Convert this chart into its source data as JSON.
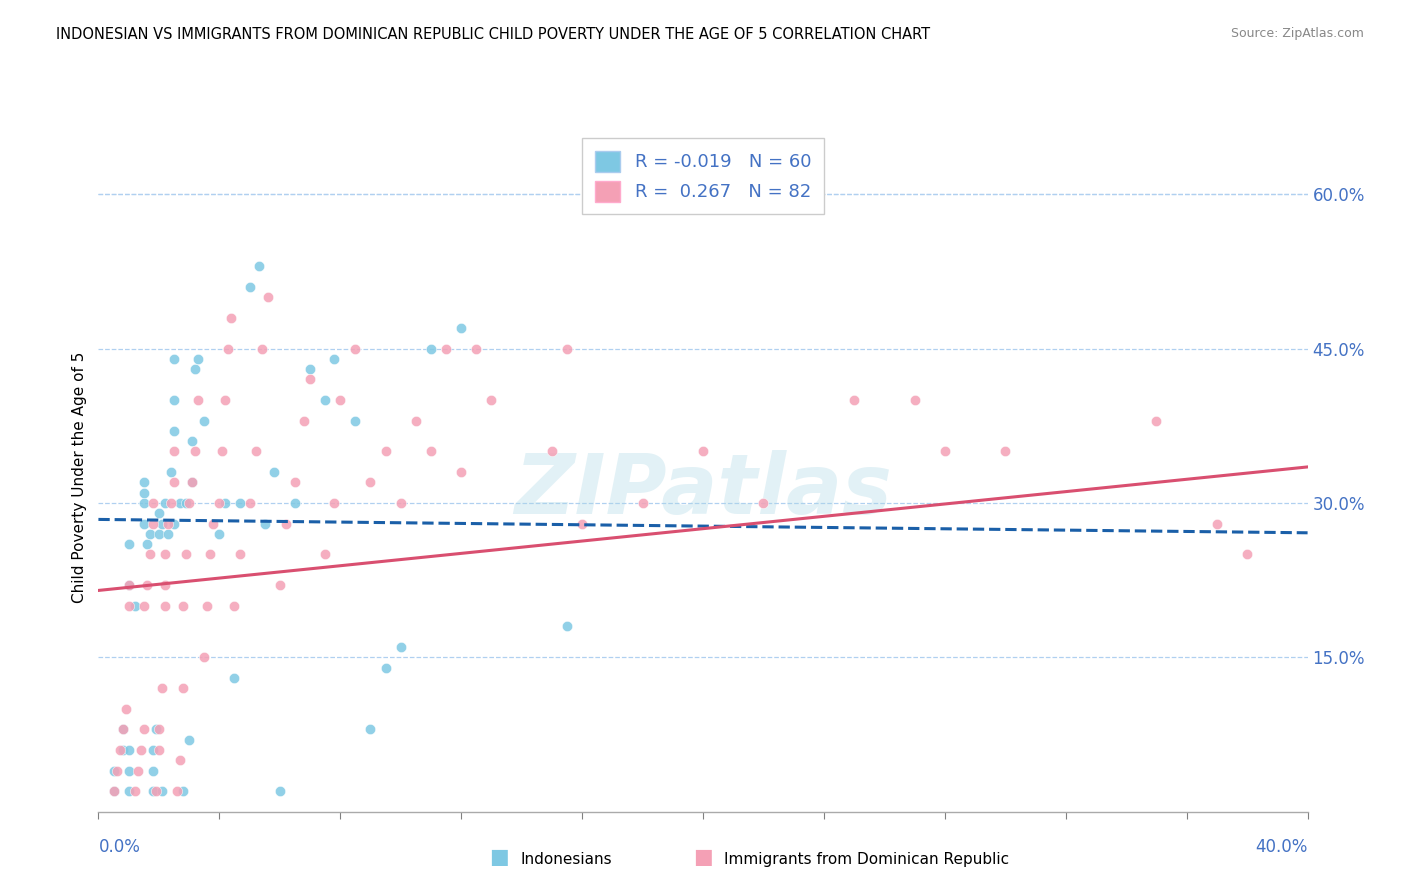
{
  "title": "INDONESIAN VS IMMIGRANTS FROM DOMINICAN REPUBLIC CHILD POVERTY UNDER THE AGE OF 5 CORRELATION CHART",
  "source": "Source: ZipAtlas.com",
  "ylabel": "Child Poverty Under the Age of 5",
  "xlim": [
    0.0,
    0.4
  ],
  "ylim": [
    0.0,
    0.65
  ],
  "ytick_vals": [
    0.15,
    0.3,
    0.45,
    0.6
  ],
  "ytick_labels": [
    "15.0%",
    "30.0%",
    "45.0%",
    "60.0%"
  ],
  "watermark": "ZIPatlas",
  "blue_scatter": "#7ec8e3",
  "pink_scatter": "#f4a0b5",
  "blue_line_color": "#1a5fa8",
  "pink_line_color": "#d94f70",
  "r_blue": "-0.019",
  "n_blue": "60",
  "r_pink": "0.267",
  "n_pink": "82",
  "indonesian_points": [
    [
      0.005,
      0.02
    ],
    [
      0.005,
      0.04
    ],
    [
      0.008,
      0.06
    ],
    [
      0.008,
      0.08
    ],
    [
      0.01,
      0.02
    ],
    [
      0.01,
      0.04
    ],
    [
      0.01,
      0.06
    ],
    [
      0.01,
      0.22
    ],
    [
      0.01,
      0.26
    ],
    [
      0.012,
      0.2
    ],
    [
      0.015,
      0.28
    ],
    [
      0.015,
      0.3
    ],
    [
      0.015,
      0.31
    ],
    [
      0.015,
      0.32
    ],
    [
      0.016,
      0.26
    ],
    [
      0.017,
      0.27
    ],
    [
      0.018,
      0.02
    ],
    [
      0.018,
      0.04
    ],
    [
      0.018,
      0.06
    ],
    [
      0.019,
      0.08
    ],
    [
      0.02,
      0.27
    ],
    [
      0.02,
      0.29
    ],
    [
      0.021,
      0.02
    ],
    [
      0.021,
      0.28
    ],
    [
      0.022,
      0.3
    ],
    [
      0.023,
      0.27
    ],
    [
      0.024,
      0.33
    ],
    [
      0.025,
      0.28
    ],
    [
      0.025,
      0.37
    ],
    [
      0.025,
      0.4
    ],
    [
      0.025,
      0.44
    ],
    [
      0.027,
      0.3
    ],
    [
      0.028,
      0.02
    ],
    [
      0.029,
      0.3
    ],
    [
      0.03,
      0.07
    ],
    [
      0.031,
      0.32
    ],
    [
      0.031,
      0.36
    ],
    [
      0.032,
      0.43
    ],
    [
      0.033,
      0.44
    ],
    [
      0.035,
      0.38
    ],
    [
      0.04,
      0.27
    ],
    [
      0.042,
      0.3
    ],
    [
      0.045,
      0.13
    ],
    [
      0.047,
      0.3
    ],
    [
      0.05,
      0.51
    ],
    [
      0.053,
      0.53
    ],
    [
      0.055,
      0.28
    ],
    [
      0.058,
      0.33
    ],
    [
      0.06,
      0.02
    ],
    [
      0.065,
      0.3
    ],
    [
      0.07,
      0.43
    ],
    [
      0.075,
      0.4
    ],
    [
      0.078,
      0.44
    ],
    [
      0.085,
      0.38
    ],
    [
      0.09,
      0.08
    ],
    [
      0.095,
      0.14
    ],
    [
      0.1,
      0.16
    ],
    [
      0.11,
      0.45
    ],
    [
      0.12,
      0.47
    ],
    [
      0.155,
      0.18
    ]
  ],
  "dominican_points": [
    [
      0.005,
      0.02
    ],
    [
      0.006,
      0.04
    ],
    [
      0.007,
      0.06
    ],
    [
      0.008,
      0.08
    ],
    [
      0.009,
      0.1
    ],
    [
      0.01,
      0.2
    ],
    [
      0.01,
      0.22
    ],
    [
      0.012,
      0.02
    ],
    [
      0.013,
      0.04
    ],
    [
      0.014,
      0.06
    ],
    [
      0.015,
      0.08
    ],
    [
      0.015,
      0.2
    ],
    [
      0.016,
      0.22
    ],
    [
      0.017,
      0.25
    ],
    [
      0.018,
      0.28
    ],
    [
      0.018,
      0.3
    ],
    [
      0.019,
      0.02
    ],
    [
      0.02,
      0.06
    ],
    [
      0.02,
      0.08
    ],
    [
      0.021,
      0.12
    ],
    [
      0.022,
      0.2
    ],
    [
      0.022,
      0.22
    ],
    [
      0.022,
      0.25
    ],
    [
      0.023,
      0.28
    ],
    [
      0.024,
      0.3
    ],
    [
      0.025,
      0.32
    ],
    [
      0.025,
      0.35
    ],
    [
      0.026,
      0.02
    ],
    [
      0.027,
      0.05
    ],
    [
      0.028,
      0.12
    ],
    [
      0.028,
      0.2
    ],
    [
      0.029,
      0.25
    ],
    [
      0.03,
      0.3
    ],
    [
      0.031,
      0.32
    ],
    [
      0.032,
      0.35
    ],
    [
      0.033,
      0.4
    ],
    [
      0.035,
      0.15
    ],
    [
      0.036,
      0.2
    ],
    [
      0.037,
      0.25
    ],
    [
      0.038,
      0.28
    ],
    [
      0.04,
      0.3
    ],
    [
      0.041,
      0.35
    ],
    [
      0.042,
      0.4
    ],
    [
      0.043,
      0.45
    ],
    [
      0.044,
      0.48
    ],
    [
      0.045,
      0.2
    ],
    [
      0.047,
      0.25
    ],
    [
      0.05,
      0.3
    ],
    [
      0.052,
      0.35
    ],
    [
      0.054,
      0.45
    ],
    [
      0.056,
      0.5
    ],
    [
      0.06,
      0.22
    ],
    [
      0.062,
      0.28
    ],
    [
      0.065,
      0.32
    ],
    [
      0.068,
      0.38
    ],
    [
      0.07,
      0.42
    ],
    [
      0.075,
      0.25
    ],
    [
      0.078,
      0.3
    ],
    [
      0.08,
      0.4
    ],
    [
      0.085,
      0.45
    ],
    [
      0.09,
      0.32
    ],
    [
      0.095,
      0.35
    ],
    [
      0.1,
      0.3
    ],
    [
      0.105,
      0.38
    ],
    [
      0.11,
      0.35
    ],
    [
      0.115,
      0.45
    ],
    [
      0.12,
      0.33
    ],
    [
      0.125,
      0.45
    ],
    [
      0.13,
      0.4
    ],
    [
      0.15,
      0.35
    ],
    [
      0.155,
      0.45
    ],
    [
      0.16,
      0.28
    ],
    [
      0.18,
      0.3
    ],
    [
      0.2,
      0.35
    ],
    [
      0.22,
      0.3
    ],
    [
      0.25,
      0.4
    ],
    [
      0.27,
      0.4
    ],
    [
      0.28,
      0.35
    ],
    [
      0.3,
      0.35
    ],
    [
      0.35,
      0.38
    ],
    [
      0.37,
      0.28
    ],
    [
      0.38,
      0.25
    ]
  ],
  "blue_trend_x": [
    0.0,
    0.4
  ],
  "blue_trend_y": [
    0.284,
    0.271
  ],
  "pink_trend_x": [
    0.0,
    0.4
  ],
  "pink_trend_y": [
    0.215,
    0.335
  ]
}
